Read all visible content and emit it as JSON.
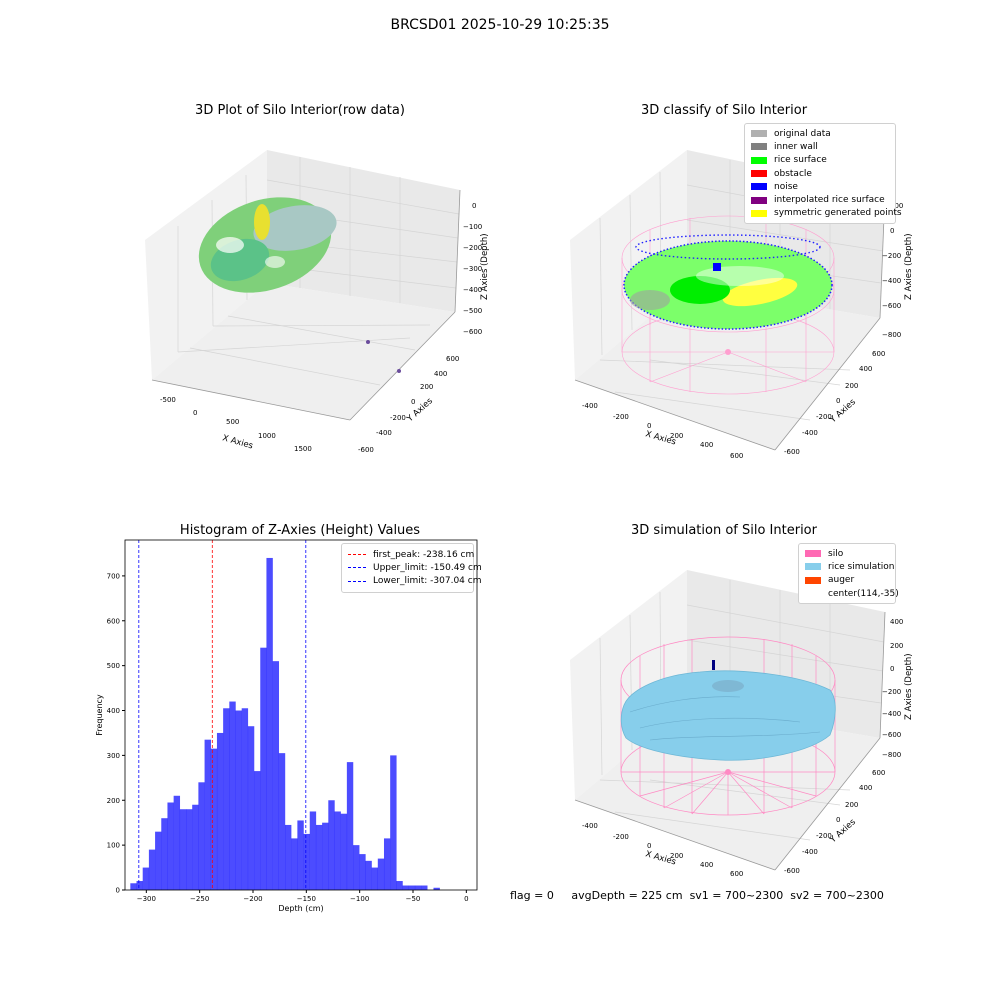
{
  "suptitle": "BRCSD01 2025-10-29 10:25:35",
  "panels": {
    "raw": {
      "title": "3D Plot of Silo Interior(row data)",
      "x_label": "X Axies",
      "y_label": "Y Axies",
      "z_label": "Z Axies (Depth)",
      "x_ticks": [
        "-500",
        "0",
        "500",
        "1000",
        "1500"
      ],
      "y_ticks": [
        "-600",
        "-400",
        "-200",
        "0",
        "200",
        "400",
        "600"
      ],
      "z_ticks": [
        "0",
        "−100",
        "−200",
        "−300",
        "−400",
        "−500",
        "−600"
      ]
    },
    "classify": {
      "title": "3D classify of Silo Interior",
      "x_label": "X Axies",
      "y_label": "Y Axies",
      "z_label": "Z Axies (Depth)",
      "x_ticks": [
        "-400",
        "-200",
        "0",
        "200",
        "400",
        "600"
      ],
      "y_ticks": [
        "-600",
        "-400",
        "-200",
        "0",
        "200",
        "400",
        "600"
      ],
      "z_ticks": [
        "200",
        "0",
        "−200",
        "−400",
        "−600",
        "−800"
      ],
      "legend": [
        {
          "label": "original data",
          "color": "#b0b0b0"
        },
        {
          "label": "inner wall",
          "color": "#808080"
        },
        {
          "label": "rice surface",
          "color": "#00ff00"
        },
        {
          "label": "obstacle",
          "color": "#ff0000"
        },
        {
          "label": "noise",
          "color": "#0000ff"
        },
        {
          "label": "interpolated rice surface",
          "color": "#800080"
        },
        {
          "label": "symmetric generated points",
          "color": "#ffff00"
        }
      ]
    },
    "simulation": {
      "title": "3D simulation of Silo Interior",
      "x_label": "X Axies",
      "y_label": "Y Axies",
      "z_label": "Z Axies (Depth)",
      "x_ticks": [
        "-400",
        "-200",
        "0",
        "200",
        "400",
        "600"
      ],
      "y_ticks": [
        "-600",
        "-400",
        "-200",
        "0",
        "200",
        "400",
        "600"
      ],
      "z_ticks": [
        "400",
        "200",
        "0",
        "−200",
        "−400",
        "−600",
        "−800"
      ],
      "legend": [
        {
          "label": "silo",
          "color": "#ff69b4"
        },
        {
          "label": "rice simulation",
          "color": "#87ceeb"
        },
        {
          "label": "auger",
          "color": "#ff4500"
        },
        {
          "label": "center(114,-35)",
          "color": ""
        }
      ]
    }
  },
  "chart_data": [
    {
      "type": "bar",
      "title": "Histogram of Z-Axies (Height) Values",
      "xlabel": "Depth (cm)",
      "ylabel": "Frequency",
      "xlim": [
        -320,
        10
      ],
      "ylim": [
        0,
        780
      ],
      "x_ticks": [
        -300,
        -250,
        -200,
        -150,
        -100,
        -50,
        0
      ],
      "x_tick_labels": [
        "−300",
        "−250",
        "−200",
        "−150",
        "−100",
        "−50",
        "0"
      ],
      "y_ticks": [
        0,
        100,
        200,
        300,
        400,
        500,
        600,
        700
      ],
      "bar_color": "#0000ff",
      "bin_start": -315,
      "bin_width": 5.8,
      "values": [
        15,
        20,
        50,
        90,
        130,
        160,
        195,
        210,
        180,
        180,
        190,
        240,
        335,
        315,
        350,
        405,
        420,
        400,
        405,
        365,
        265,
        540,
        740,
        510,
        305,
        145,
        115,
        155,
        125,
        175,
        145,
        150,
        200,
        175,
        170,
        285,
        100,
        80,
        65,
        50,
        70,
        115,
        300,
        20,
        10,
        10,
        10,
        10,
        0,
        5
      ],
      "vlines": [
        {
          "label": "first_peak: -238.16 cm",
          "x": -238.16,
          "color": "#ff0000"
        },
        {
          "label": "Upper_limit: -150.49 cm",
          "x": -150.49,
          "color": "#0000ff"
        },
        {
          "label": "Lower_limit: -307.04 cm",
          "x": -307.04,
          "color": "#0000ff"
        }
      ],
      "legend": "top-right"
    }
  ],
  "status": {
    "flag": "flag = 0",
    "avg_depth": "avgDepth = 225 cm",
    "sv1": "sv1 = 700~2300",
    "sv2": "sv2 = 700~2300"
  }
}
